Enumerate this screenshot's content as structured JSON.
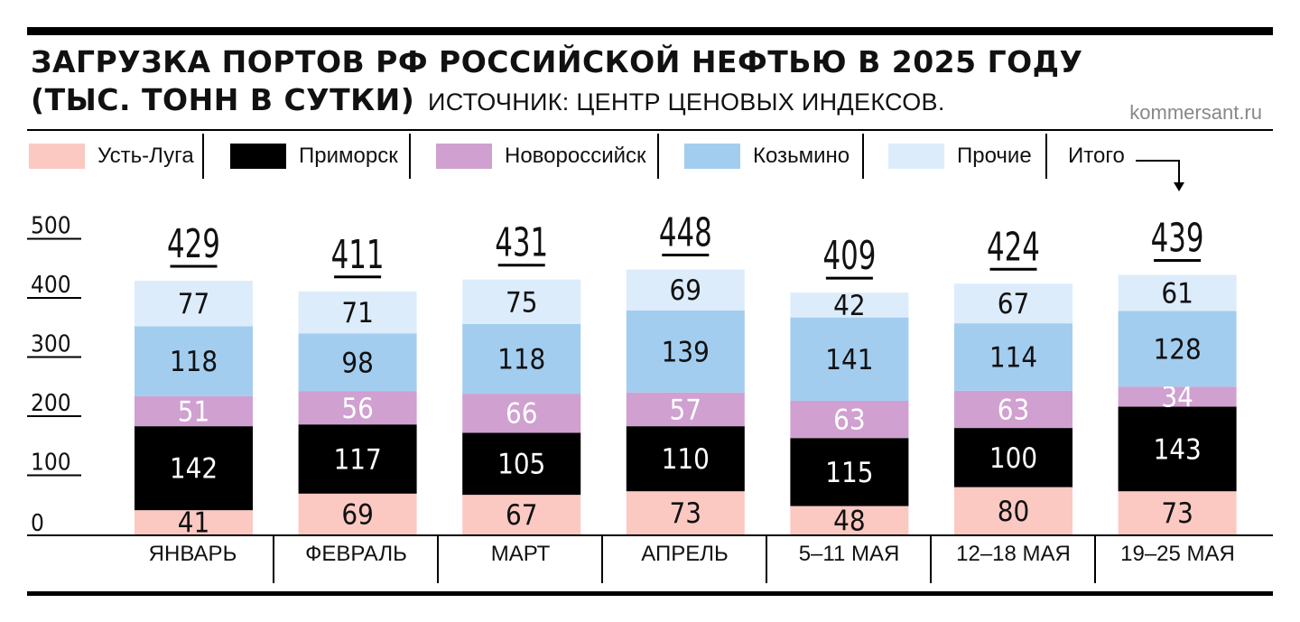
{
  "title": "ЗАГРУЗКА ПОРТОВ РФ РОССИЙСКОЙ НЕФТЬЮ В 2025 ГОДУ",
  "subtitle": "(ТЫС. ТОНН В СУТКИ)",
  "source": "ИСТОЧНИК: ЦЕНТР ЦЕНОВЫХ ИНДЕКСОВ.",
  "site": "kommersant.ru",
  "legend": [
    {
      "label": "Усть-Луга",
      "color": "#fbc9c2"
    },
    {
      "label": "Приморск",
      "color": "#000000"
    },
    {
      "label": "Новороссийск",
      "color": "#cfa0d0"
    },
    {
      "label": "Козьмино",
      "color": "#a3cdef"
    },
    {
      "label": "Прочие",
      "color": "#dcecfa"
    }
  ],
  "total_label": "Итого",
  "chart_data": {
    "type": "bar",
    "stacked": true,
    "categories": [
      "ЯНВАРЬ",
      "ФЕВРАЛЬ",
      "МАРТ",
      "АПРЕЛЬ",
      "5–11 МАЯ",
      "12–18 МАЯ",
      "19–25 МАЯ"
    ],
    "series": [
      {
        "name": "Усть-Луга",
        "color": "#fbc9c2",
        "label_color": "#111111",
        "values": [
          41,
          69,
          67,
          73,
          48,
          80,
          73
        ]
      },
      {
        "name": "Приморск",
        "color": "#000000",
        "label_color": "#ffffff",
        "values": [
          142,
          117,
          105,
          110,
          115,
          100,
          143
        ]
      },
      {
        "name": "Новороссийск",
        "color": "#cfa0d0",
        "label_color": "#ffffff",
        "values": [
          51,
          56,
          66,
          57,
          63,
          63,
          34
        ]
      },
      {
        "name": "Козьмино",
        "color": "#a3cdef",
        "label_color": "#111111",
        "values": [
          118,
          98,
          118,
          139,
          141,
          114,
          128
        ]
      },
      {
        "name": "Прочие",
        "color": "#dcecfa",
        "label_color": "#111111",
        "values": [
          77,
          71,
          75,
          69,
          42,
          67,
          61
        ]
      }
    ],
    "totals": [
      429,
      411,
      431,
      448,
      409,
      424,
      439
    ],
    "yticks": [
      0,
      100,
      200,
      300,
      400,
      500
    ],
    "ylim": [
      0,
      500
    ],
    "legend_position": "top"
  }
}
